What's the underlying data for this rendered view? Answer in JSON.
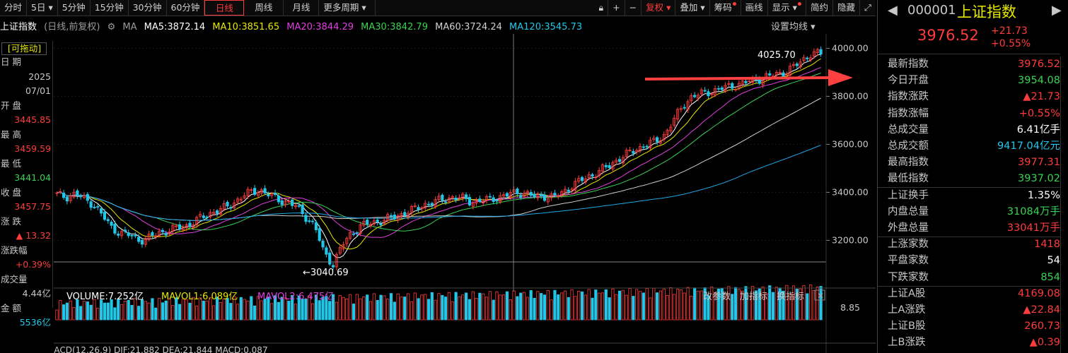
{
  "toolbar": {
    "items": [
      "分时",
      "5日",
      "5分钟",
      "15分钟",
      "30分钟",
      "60分钟",
      "日线",
      "周线",
      "月线",
      "更多周期"
    ],
    "active": "日线",
    "right_items": [
      "复权",
      "叠加",
      "筹码",
      "画线",
      "显示",
      "简约",
      "隐藏"
    ]
  },
  "ma_line": {
    "index_name": "上证指数",
    "mode": "(日线,前复权)",
    "ma_label": "MA",
    "ma5": "MA5:3872.14",
    "ma10": "MA10:3851.65",
    "ma20": "MA20:3844.29",
    "ma30": "MA30:3842.79",
    "ma60": "MA60:3724.24",
    "ma120": "MA120:3545.73",
    "settings": "设置均线"
  },
  "left_panel": {
    "badge": "[可拖动]",
    "date_label": "日 期",
    "year": "2025",
    "date": "07/01",
    "open_label": "开 盘",
    "open": "3445.85",
    "high_label": "最 高",
    "high": "3459.59",
    "low_label": "最 低",
    "low": "3441.04",
    "close_label": "收 盘",
    "close": "3457.75",
    "chg_label": "涨 跌",
    "chg": "▲ 13.32",
    "pct_label": "涨跌幅",
    "pct": "+0.39%",
    "vol_label": "成交量",
    "vol": "4.44亿",
    "amt_label": "金 额",
    "amt": "5536亿"
  },
  "chart_data": {
    "type": "candlestick",
    "y_ticks": [
      "4000.00",
      "3800.00",
      "3600.00",
      "3400.00",
      "3200.00"
    ],
    "ylim": [
      3060,
      4060
    ],
    "high_annotation": "4025.70",
    "low_annotation": "←3040.69",
    "closes": [
      3390,
      3380,
      3395,
      3370,
      3350,
      3300,
      3250,
      3230,
      3220,
      3200,
      3210,
      3230,
      3240,
      3250,
      3260,
      3280,
      3300,
      3320,
      3330,
      3350,
      3380,
      3400,
      3410,
      3390,
      3370,
      3360,
      3340,
      3300,
      3260,
      3150,
      3100,
      3180,
      3230,
      3260,
      3270,
      3280,
      3290,
      3300,
      3320,
      3330,
      3350,
      3360,
      3370,
      3380,
      3375,
      3360,
      3365,
      3370,
      3380,
      3390,
      3400,
      3395,
      3380,
      3385,
      3380,
      3400,
      3430,
      3450,
      3470,
      3490,
      3510,
      3540,
      3560,
      3580,
      3600,
      3610,
      3640,
      3700,
      3760,
      3800,
      3810,
      3820,
      3830,
      3840,
      3850,
      3860,
      3870,
      3880,
      3890,
      3900,
      3920,
      3950,
      3980,
      3976
    ],
    "volume": {
      "label": "VOLUME:7.252亿",
      "mavol1": "MAVOL1:6.089亿",
      "mavol2": "MAVOL2:6.475亿",
      "max_tick": "8.85"
    },
    "volume_buttons": [
      "改参数",
      "加指标",
      "换指标"
    ],
    "macd_label": "MACD(12,26,9)  DIF:21.882  DEA:21.844  MACD:0.087"
  },
  "right_panel": {
    "code": "000001",
    "name": "上证指数",
    "price": "3976.52",
    "change": "+21.73",
    "change_pct": "+0.55%",
    "rows": [
      {
        "k": "最新指数",
        "v": "3976.52",
        "c": "red"
      },
      {
        "k": "今日开盘",
        "v": "3954.08",
        "c": "green"
      },
      {
        "k": "指数涨跌",
        "v": "▲21.73",
        "c": "red"
      },
      {
        "k": "指数涨幅",
        "v": "+0.55%",
        "c": "red"
      },
      {
        "k": "总成交量",
        "v": "6.41亿手",
        "c": "white"
      },
      {
        "k": "总成交额",
        "v": "9417.04亿元",
        "c": "cyan"
      },
      {
        "k": "最高指数",
        "v": "3977.31",
        "c": "red"
      },
      {
        "k": "最低指数",
        "v": "3937.02",
        "c": "green"
      },
      {
        "k": "上证换手",
        "v": "1.35%",
        "c": "white"
      },
      {
        "k": "内盘总量",
        "v": "31084万手",
        "c": "green"
      },
      {
        "k": "外盘总量",
        "v": "33041万手",
        "c": "red"
      },
      {
        "k": "上涨家数",
        "v": "1418",
        "c": "red"
      },
      {
        "k": "平盘家数",
        "v": "54",
        "c": "white"
      },
      {
        "k": "下跌家数",
        "v": "854",
        "c": "green"
      },
      {
        "k": "上证A股",
        "v": "4169.08",
        "c": "red"
      },
      {
        "k": "上A涨跌",
        "v": "▲22.84",
        "c": "red"
      },
      {
        "k": "上证B股",
        "v": "260.73",
        "c": "red"
      },
      {
        "k": "上B涨跌",
        "v": "▲0.39",
        "c": "red"
      }
    ]
  },
  "colors": {
    "up": "#ff3c3c",
    "down": "#22c7e8",
    "ma5": "#ffffff",
    "ma10": "#e6e600",
    "ma20": "#e040e0",
    "ma30": "#39d353",
    "ma60": "#d0d0d0",
    "ma120": "#22a6e8"
  }
}
